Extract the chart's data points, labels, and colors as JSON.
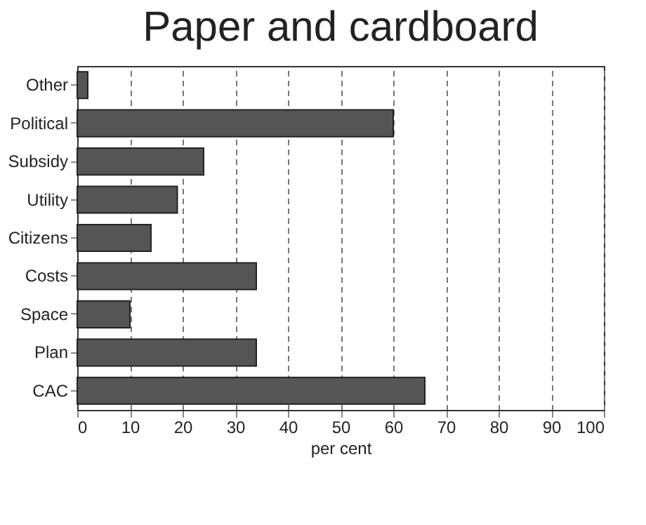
{
  "chart_data": {
    "type": "bar",
    "orientation": "horizontal",
    "title": "Paper and cardboard",
    "xlabel": "per cent",
    "categories": [
      "Other",
      "Political",
      "Subsidy",
      "Utility",
      "Citizens",
      "Costs",
      "Space",
      "Plan",
      "CAC"
    ],
    "values": [
      2,
      60,
      24,
      19,
      14,
      34,
      10,
      34,
      66
    ],
    "color": "#555555",
    "xlim": [
      0,
      100
    ],
    "xticks": [
      0,
      10,
      20,
      30,
      40,
      50,
      60,
      70,
      80,
      90,
      100
    ],
    "grid": "x"
  }
}
